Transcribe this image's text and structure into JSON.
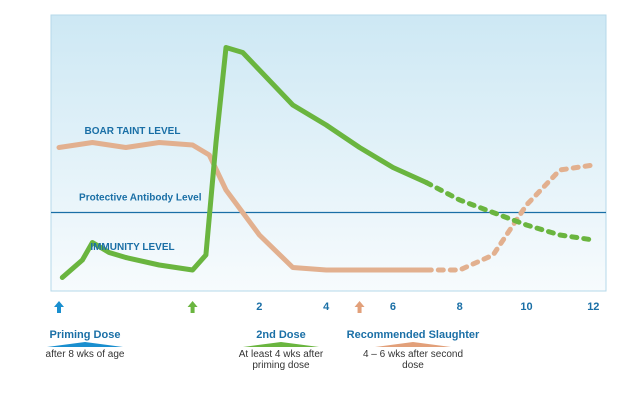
{
  "chart_data": {
    "type": "line",
    "xlim": [
      -4,
      12.2
    ],
    "ylim": [
      0,
      100
    ],
    "x_ticks": [
      2,
      4,
      6,
      8,
      10,
      12
    ],
    "tick_labels": [
      "2",
      "4",
      "6",
      "8",
      "10",
      "12"
    ],
    "threshold": {
      "label": "Protective Antibody Level",
      "y": 29
    },
    "series": [
      {
        "name": "BOAR TAINT LEVEL",
        "color": "#e2b08f",
        "solid": [
          [
            -4,
            55
          ],
          [
            -3,
            57
          ],
          [
            -2,
            55
          ],
          [
            -1,
            57
          ],
          [
            0,
            56
          ],
          [
            0.5,
            52
          ],
          [
            1,
            38
          ],
          [
            2,
            20
          ],
          [
            3,
            7
          ],
          [
            4,
            6
          ],
          [
            5,
            6
          ],
          [
            6,
            6
          ],
          [
            7,
            6
          ]
        ],
        "dotted": [
          [
            7,
            6
          ],
          [
            8,
            6
          ],
          [
            9,
            12
          ],
          [
            10,
            32
          ],
          [
            11,
            46
          ],
          [
            12,
            48
          ]
        ]
      },
      {
        "name": "IMMUNITY LEVEL",
        "color": "#6ab53f",
        "solid": [
          [
            -3.9,
            3
          ],
          [
            -3.3,
            10
          ],
          [
            -3,
            17
          ],
          [
            -2.5,
            13
          ],
          [
            -2,
            11
          ],
          [
            -1,
            8
          ],
          [
            0,
            6
          ],
          [
            0.4,
            12
          ],
          [
            0.7,
            57
          ],
          [
            1,
            95
          ],
          [
            1.5,
            93
          ],
          [
            2,
            86
          ],
          [
            3,
            72
          ],
          [
            4,
            64
          ],
          [
            5,
            55
          ],
          [
            6,
            47
          ],
          [
            7,
            41
          ]
        ],
        "dotted": [
          [
            7,
            41
          ],
          [
            8,
            34
          ],
          [
            9,
            29
          ],
          [
            10,
            24
          ],
          [
            11,
            20
          ],
          [
            12,
            18
          ]
        ]
      }
    ],
    "markers": [
      {
        "title": "Priming Dose",
        "note": "after 8 wks of age",
        "x": -4,
        "arrow_color": "#1a8fcf"
      },
      {
        "title": "2nd Dose",
        "note": "At least 4 wks after priming dose",
        "x": 0,
        "arrow_color": "#6ab53f"
      },
      {
        "title": "Recommended Slaughter",
        "note": "4 – 6 wks after second dose",
        "x": 5,
        "arrow_color": "#e2a07a"
      }
    ]
  }
}
